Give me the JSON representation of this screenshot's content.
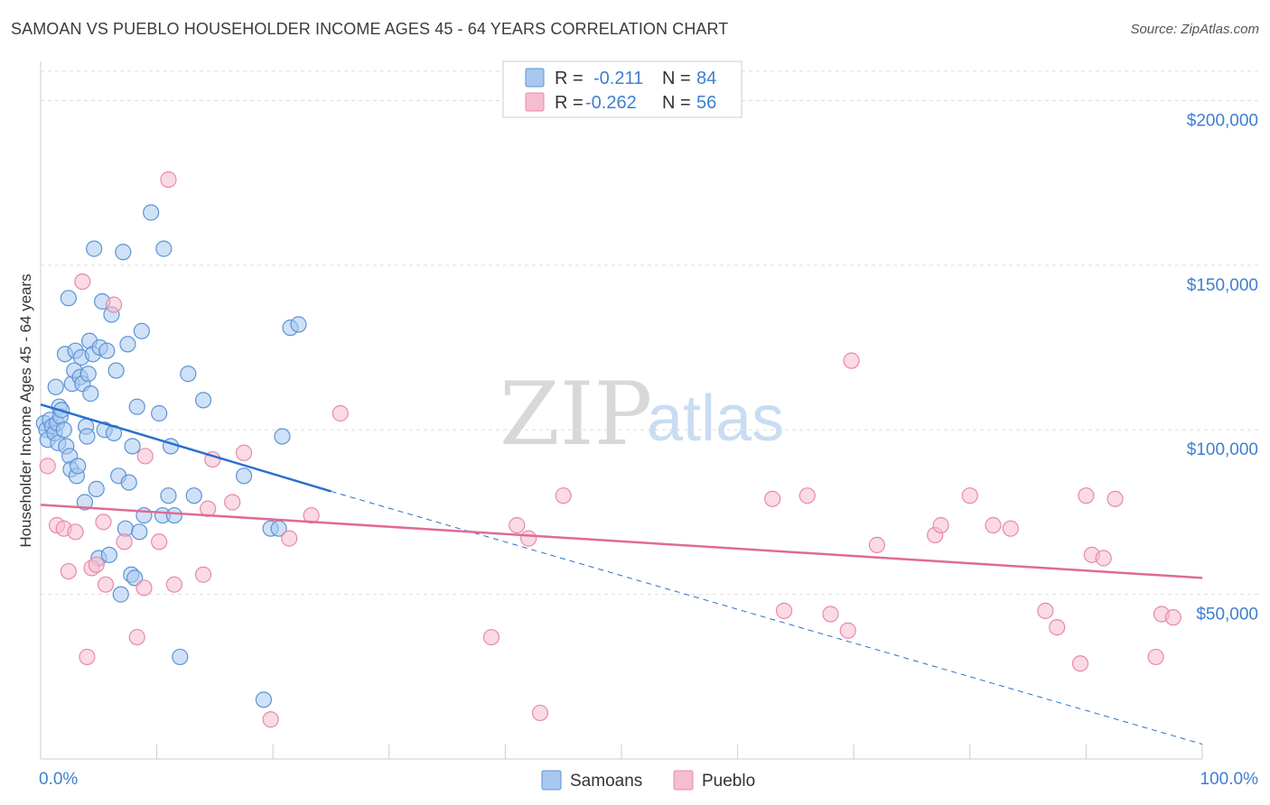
{
  "title": "SAMOAN VS PUEBLO HOUSEHOLDER INCOME AGES 45 - 64 YEARS CORRELATION CHART",
  "source": "Source: ZipAtlas.com",
  "watermark": {
    "zip": "ZIP",
    "atlas": "atlas"
  },
  "colors": {
    "samoans_fill": "#a8c8f0",
    "samoans_stroke": "#5b93d6",
    "samoans_line": "#2a6fcf",
    "pueblo_fill": "#f6bccf",
    "pueblo_stroke": "#e889a9",
    "pueblo_line": "#e06a93",
    "tick_label": "#3f7fd0",
    "grid": "#dddddd"
  },
  "legend_top": {
    "rows": [
      {
        "r_label": "R =",
        "r_value": "-0.211",
        "n_label": "N =",
        "n_value": "84"
      },
      {
        "r_label": "R =",
        "r_value": "-0.262",
        "n_label": "N =",
        "n_value": "56"
      }
    ]
  },
  "legend_bottom": {
    "items": [
      {
        "label": "Samoans"
      },
      {
        "label": "Pueblo"
      }
    ]
  },
  "chart_data": {
    "type": "scatter",
    "title": "SAMOAN VS PUEBLO HOUSEHOLDER INCOME AGES 45 - 64 YEARS CORRELATION CHART",
    "xlabel": "",
    "ylabel": "Householder Income Ages 45 - 64 years",
    "xlim": [
      0,
      100
    ],
    "ylim": [
      0,
      210000
    ],
    "x_tick_labels": [
      "0.0%",
      "100.0%"
    ],
    "y_ticks": [
      50000,
      100000,
      150000,
      200000
    ],
    "y_tick_labels": [
      "$50,000",
      "$100,000",
      "$150,000",
      "$200,000"
    ],
    "grid": true,
    "legend_position": "top-center",
    "series": [
      {
        "name": "Samoans",
        "r": -0.211,
        "n": 84,
        "trend": {
          "x": [
            0,
            25
          ],
          "y": [
            107700,
            81300
          ]
        },
        "trend_extension": {
          "x": [
            25,
            100
          ],
          "y": [
            81300,
            4500
          ]
        },
        "points": [
          [
            0.3,
            102000
          ],
          [
            0.5,
            100000
          ],
          [
            0.6,
            97000
          ],
          [
            0.8,
            103000
          ],
          [
            1.0,
            101000
          ],
          [
            1.2,
            99000
          ],
          [
            1.3,
            113000
          ],
          [
            1.4,
            102000
          ],
          [
            1.5,
            96000
          ],
          [
            1.6,
            107000
          ],
          [
            1.7,
            104000
          ],
          [
            1.8,
            106000
          ],
          [
            2.0,
            100000
          ],
          [
            2.1,
            123000
          ],
          [
            2.2,
            95000
          ],
          [
            2.4,
            140000
          ],
          [
            2.5,
            92000
          ],
          [
            2.6,
            88000
          ],
          [
            2.7,
            114000
          ],
          [
            2.9,
            118000
          ],
          [
            3.0,
            124000
          ],
          [
            3.1,
            86000
          ],
          [
            3.2,
            89000
          ],
          [
            3.4,
            116000
          ],
          [
            3.5,
            122000
          ],
          [
            3.6,
            114000
          ],
          [
            3.8,
            78000
          ],
          [
            3.9,
            101000
          ],
          [
            4.0,
            98000
          ],
          [
            4.1,
            117000
          ],
          [
            4.2,
            127000
          ],
          [
            4.3,
            111000
          ],
          [
            4.5,
            123000
          ],
          [
            4.6,
            155000
          ],
          [
            4.8,
            82000
          ],
          [
            5.0,
            61000
          ],
          [
            5.1,
            125000
          ],
          [
            5.3,
            139000
          ],
          [
            5.5,
            100000
          ],
          [
            5.7,
            124000
          ],
          [
            5.9,
            62000
          ],
          [
            6.1,
            135000
          ],
          [
            6.3,
            99000
          ],
          [
            6.5,
            118000
          ],
          [
            6.7,
            86000
          ],
          [
            6.9,
            50000
          ],
          [
            7.1,
            154000
          ],
          [
            7.3,
            70000
          ],
          [
            7.5,
            126000
          ],
          [
            7.6,
            84000
          ],
          [
            7.8,
            56000
          ],
          [
            7.9,
            95000
          ],
          [
            8.1,
            55000
          ],
          [
            8.3,
            107000
          ],
          [
            8.5,
            69000
          ],
          [
            8.7,
            130000
          ],
          [
            8.9,
            74000
          ],
          [
            9.5,
            166000
          ],
          [
            10.2,
            105000
          ],
          [
            10.5,
            74000
          ],
          [
            10.6,
            155000
          ],
          [
            11.0,
            80000
          ],
          [
            11.2,
            95000
          ],
          [
            11.5,
            74000
          ],
          [
            12.0,
            31000
          ],
          [
            12.7,
            117000
          ],
          [
            13.2,
            80000
          ],
          [
            14.0,
            109000
          ],
          [
            17.5,
            86000
          ],
          [
            19.2,
            18000
          ],
          [
            19.8,
            70000
          ],
          [
            20.5,
            70000
          ],
          [
            20.8,
            98000
          ],
          [
            21.5,
            131000
          ],
          [
            22.2,
            132000
          ]
        ]
      },
      {
        "name": "Pueblo",
        "r": -0.262,
        "n": 56,
        "trend": {
          "x": [
            0,
            100
          ],
          "y": [
            77200,
            55000
          ]
        },
        "points": [
          [
            0.6,
            89000
          ],
          [
            1.4,
            71000
          ],
          [
            2.0,
            70000
          ],
          [
            2.4,
            57000
          ],
          [
            3.0,
            69000
          ],
          [
            3.6,
            145000
          ],
          [
            4.0,
            31000
          ],
          [
            4.4,
            58000
          ],
          [
            4.8,
            59000
          ],
          [
            5.4,
            72000
          ],
          [
            5.6,
            53000
          ],
          [
            6.3,
            138000
          ],
          [
            7.2,
            66000
          ],
          [
            8.3,
            37000
          ],
          [
            8.9,
            52000
          ],
          [
            9.0,
            92000
          ],
          [
            10.2,
            66000
          ],
          [
            11.0,
            176000
          ],
          [
            11.5,
            53000
          ],
          [
            14.0,
            56000
          ],
          [
            14.4,
            76000
          ],
          [
            14.8,
            91000
          ],
          [
            16.5,
            78000
          ],
          [
            17.5,
            93000
          ],
          [
            19.8,
            12000
          ],
          [
            21.4,
            67000
          ],
          [
            23.3,
            74000
          ],
          [
            25.8,
            105000
          ],
          [
            38.8,
            37000
          ],
          [
            41.0,
            71000
          ],
          [
            42.0,
            67000
          ],
          [
            43.0,
            14000
          ],
          [
            45.0,
            80000
          ],
          [
            63.0,
            79000
          ],
          [
            64.0,
            45000
          ],
          [
            66.0,
            80000
          ],
          [
            68.0,
            44000
          ],
          [
            69.5,
            39000
          ],
          [
            69.8,
            121000
          ],
          [
            72.0,
            65000
          ],
          [
            77.0,
            68000
          ],
          [
            77.5,
            71000
          ],
          [
            80.0,
            80000
          ],
          [
            82.0,
            71000
          ],
          [
            83.5,
            70000
          ],
          [
            86.5,
            45000
          ],
          [
            87.5,
            40000
          ],
          [
            89.5,
            29000
          ],
          [
            90.0,
            80000
          ],
          [
            90.5,
            62000
          ],
          [
            91.5,
            61000
          ],
          [
            92.5,
            79000
          ],
          [
            96.0,
            31000
          ],
          [
            96.5,
            44000
          ],
          [
            97.5,
            43000
          ]
        ]
      }
    ]
  }
}
